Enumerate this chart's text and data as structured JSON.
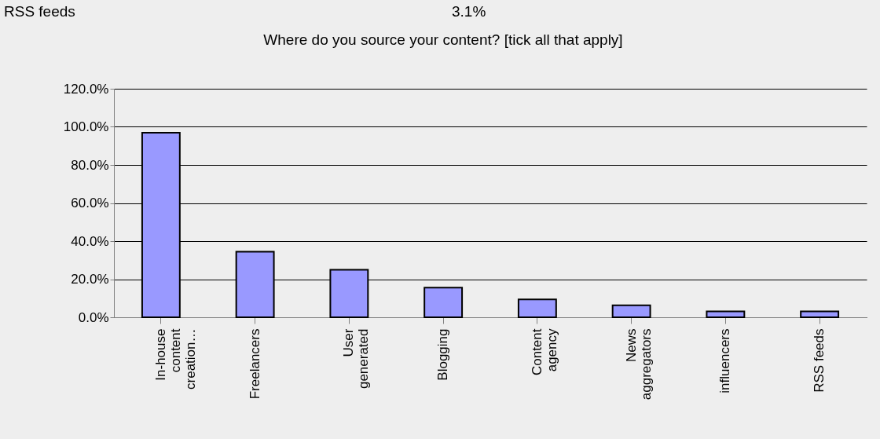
{
  "chart_data": {
    "type": "bar",
    "title": "Where do you source your content? [tick all that apply]",
    "categories": [
      "In-house\ncontent\ncreation…",
      "Freelancers",
      "User\ngenerated",
      "Blogging",
      "Content\nagency",
      "News\naggregators",
      "influencers",
      "RSS feeds"
    ],
    "values": [
      96.9,
      34.4,
      24.9,
      15.6,
      9.4,
      6.3,
      3.1,
      3.1
    ],
    "color": "#9999ff",
    "ylim": [
      0,
      120
    ],
    "yticks": [
      {
        "value": 0,
        "label": "0.0%"
      },
      {
        "value": 20,
        "label": "20.0%"
      },
      {
        "value": 40,
        "label": "40.0%"
      },
      {
        "value": 60,
        "label": "60.0%"
      },
      {
        "value": 80,
        "label": "80.0%"
      },
      {
        "value": 100,
        "label": "100.0%"
      },
      {
        "value": 120,
        "label": "120.0%"
      }
    ],
    "grid": "y",
    "annotations": [
      "RSS feeds",
      "3.1%"
    ]
  }
}
